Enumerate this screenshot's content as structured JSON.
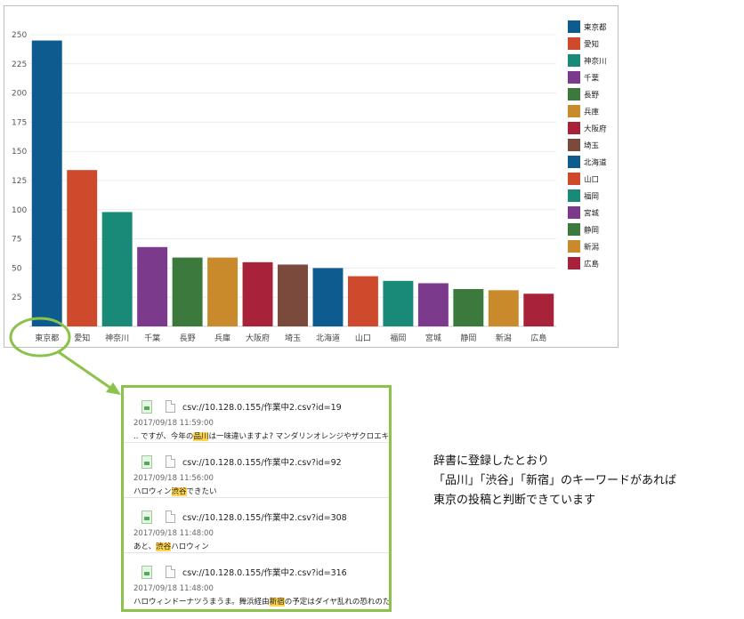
{
  "chart_data": {
    "type": "bar",
    "categories": [
      "東京都",
      "愛知",
      "神奈川",
      "千葉",
      "長野",
      "兵庫",
      "大阪府",
      "埼玉",
      "北海道",
      "山口",
      "福岡",
      "宮城",
      "静岡",
      "新潟",
      "広島"
    ],
    "values": [
      245,
      134,
      98,
      68,
      59,
      59,
      55,
      53,
      50,
      43,
      39,
      37,
      32,
      31,
      28
    ],
    "colors": [
      "#0e5b8f",
      "#cf4a2c",
      "#1a8a78",
      "#7b3a8c",
      "#3b7a3c",
      "#c98a2b",
      "#a8233a",
      "#7a4a3c",
      "#0e5b8f",
      "#cf4a2c",
      "#1a8a78",
      "#7b3a8c",
      "#3b7a3c",
      "#c98a2b",
      "#a8233a"
    ],
    "yticks": [
      25,
      50,
      75,
      100,
      125,
      150,
      175,
      200,
      225,
      250
    ],
    "ylim": [
      0,
      250
    ],
    "legend_position": "right",
    "grid": true,
    "title": "",
    "xlabel": "",
    "ylabel": ""
  },
  "highlight": {
    "category": "東京都",
    "outline_color": "#8bc34a"
  },
  "results": [
    {
      "link": "csv://10.128.0.155/作業中2.csv?id=19",
      "date": "2017/09/18 11:59:00",
      "snippet_before": ".. ですが、今年の",
      "snippet_highlight": "品川",
      "snippet_after": "は一味違いますよ? マンダリンオレンジやザクロエキスなどフル"
    },
    {
      "link": "csv://10.128.0.155/作業中2.csv?id=92",
      "date": "2017/09/18 11:56:00",
      "snippet_before": "ハロウィン",
      "snippet_highlight": "渋谷",
      "snippet_after": "できたい"
    },
    {
      "link": "csv://10.128.0.155/作業中2.csv?id=308",
      "date": "2017/09/18 11:48:00",
      "snippet_before": "あと、",
      "snippet_highlight": "渋谷",
      "snippet_after": "ハロウィン"
    },
    {
      "link": "csv://10.128.0.155/作業中2.csv?id=316",
      "date": "2017/09/18 11:48:00",
      "snippet_before": "ハロウィンドーナツうまうま。舞浜経由",
      "snippet_highlight": "新宿",
      "snippet_after": "の予定はダイヤ乱れの恐れのため頓挫"
    }
  ],
  "annotation": {
    "line1": "辞書に登録したとおり",
    "line2": "「品川」「渋谷」「新宿」のキーワードがあれば",
    "line3": "東京の投稿と判断できています"
  }
}
